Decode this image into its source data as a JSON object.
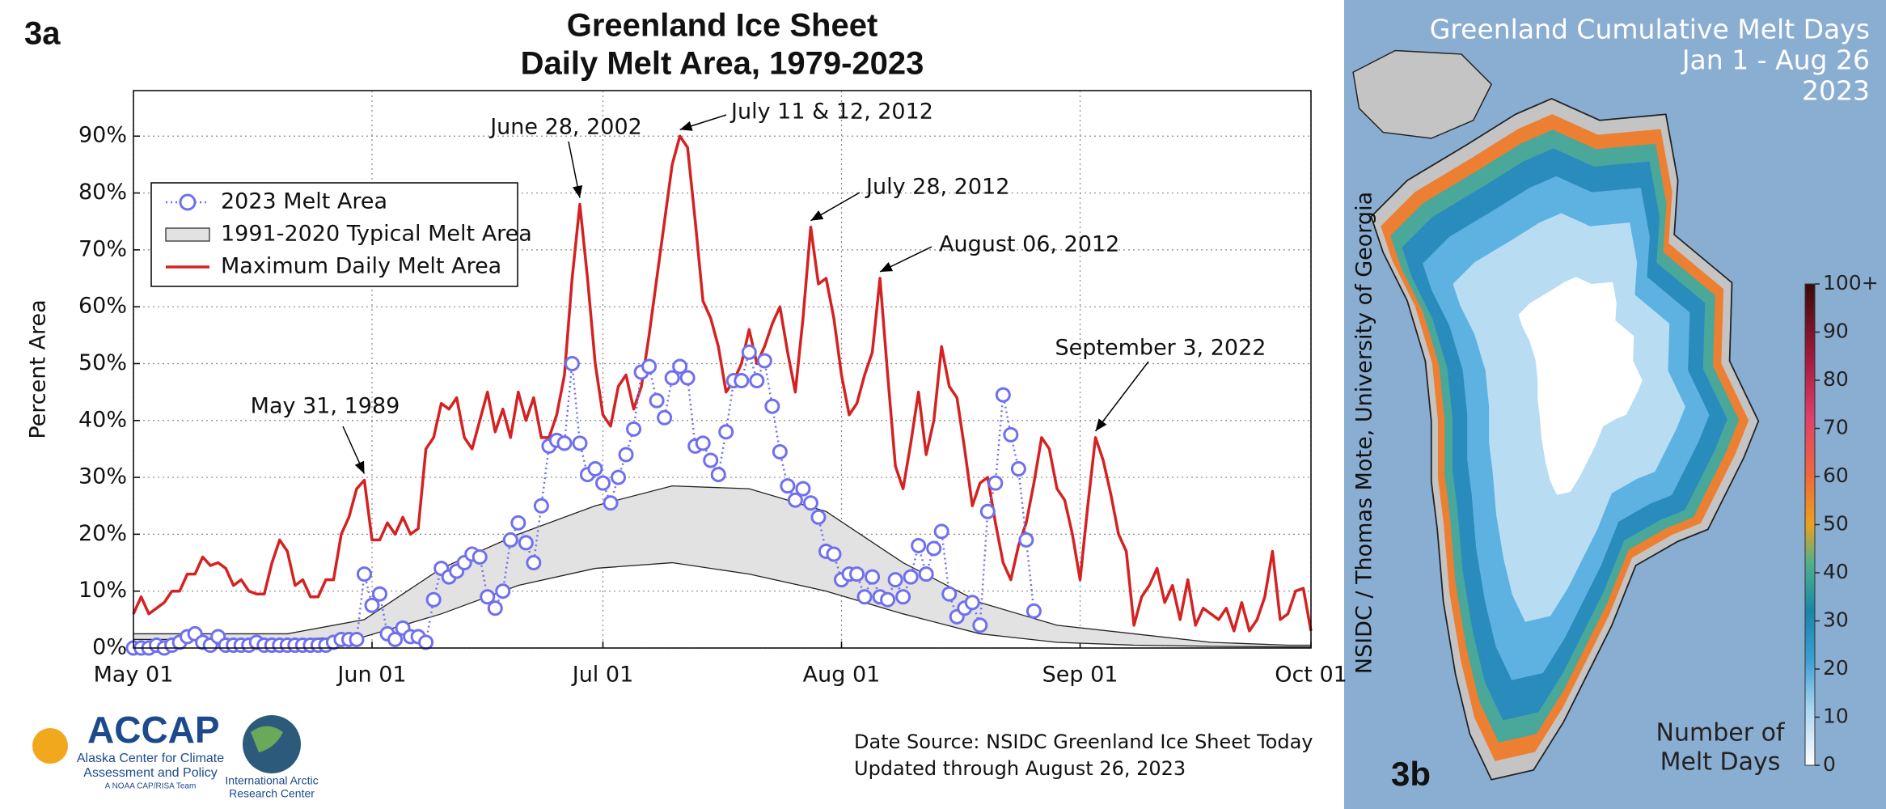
{
  "panel_label": "3a",
  "chart_data": {
    "type": "line",
    "title": [
      "Greenland Ice Sheet",
      "Daily Melt Area, 1979-2023"
    ],
    "ylabel": "Percent Area",
    "xlim": [
      0,
      153
    ],
    "xticks": [
      {
        "value": 0,
        "label": "May 01"
      },
      {
        "value": 31,
        "label": "Jun 01"
      },
      {
        "value": 61,
        "label": "Jul 01"
      },
      {
        "value": 92,
        "label": "Aug 01"
      },
      {
        "value": 123,
        "label": "Sep 01"
      },
      {
        "value": 153,
        "label": "Oct 01"
      }
    ],
    "ylim": [
      0,
      98
    ],
    "yticks": [
      {
        "value": 0,
        "label": "0%"
      },
      {
        "value": 10,
        "label": "10%"
      },
      {
        "value": 20,
        "label": "20%"
      },
      {
        "value": 30,
        "label": "30%"
      },
      {
        "value": 40,
        "label": "40%"
      },
      {
        "value": 50,
        "label": "50%"
      },
      {
        "value": 60,
        "label": "60%"
      },
      {
        "value": 70,
        "label": "70%"
      },
      {
        "value": 80,
        "label": "80%"
      },
      {
        "value": 90,
        "label": "90%"
      }
    ],
    "grid": true,
    "legend": "upper left",
    "x": [
      0,
      1,
      2,
      3,
      4,
      5,
      6,
      7,
      8,
      9,
      10,
      11,
      12,
      13,
      14,
      15,
      16,
      17,
      18,
      19,
      20,
      21,
      22,
      23,
      24,
      25,
      26,
      27,
      28,
      29,
      30,
      31,
      32,
      33,
      34,
      35,
      36,
      37,
      38,
      39,
      40,
      41,
      42,
      43,
      44,
      45,
      46,
      47,
      48,
      49,
      50,
      51,
      52,
      53,
      54,
      55,
      56,
      57,
      58,
      59,
      60,
      61,
      62,
      63,
      64,
      65,
      66,
      67,
      68,
      69,
      70,
      71,
      72,
      73,
      74,
      75,
      76,
      77,
      78,
      79,
      80,
      81,
      82,
      83,
      84,
      85,
      86,
      87,
      88,
      89,
      90,
      91,
      92,
      93,
      94,
      95,
      96,
      97,
      98,
      99,
      100,
      101,
      102,
      103,
      104,
      105,
      106,
      107,
      108,
      109,
      110,
      111,
      112,
      113,
      114,
      115,
      116,
      117,
      118,
      119,
      120,
      121,
      122,
      123,
      124,
      125,
      126,
      127,
      128,
      129,
      130,
      131,
      132,
      133,
      134,
      135,
      136,
      137,
      138,
      139,
      140,
      141,
      142,
      143,
      144,
      145,
      146,
      147,
      148,
      149,
      150,
      151,
      152,
      153
    ],
    "series": [
      {
        "name": "2023 Melt Area",
        "color": "#6f6ff0",
        "values": [
          0,
          0,
          0,
          0.5,
          0,
          0.5,
          1,
          2,
          2.5,
          1,
          0.5,
          2,
          0.5,
          0.5,
          0.5,
          0.5,
          1,
          0.5,
          0.5,
          0.5,
          0.5,
          0.5,
          0.5,
          0.5,
          0.5,
          0.5,
          1,
          1.5,
          1.5,
          1.5,
          13,
          7.5,
          9.5,
          2.5,
          1.5,
          3.5,
          2,
          2,
          1,
          8.5,
          14,
          12.5,
          13.5,
          15,
          16.5,
          16,
          9,
          7,
          10,
          19,
          22,
          18.5,
          15,
          25,
          35.5,
          36.5,
          36,
          50,
          36,
          30.5,
          31.5,
          29,
          25.5,
          30,
          34,
          38.5,
          48.5,
          49.5,
          43.5,
          40.5,
          47.5,
          49.5,
          47.5,
          35.5,
          36,
          33,
          30.5,
          38,
          47,
          47,
          52,
          47,
          50.5,
          42.5,
          34.5,
          28.5,
          26,
          28,
          25.5,
          23,
          17,
          16.5,
          12,
          13,
          13,
          9,
          12.5,
          9,
          8.5,
          12,
          9,
          12.5,
          18,
          13,
          17.5,
          20.5,
          9.5,
          5.5,
          7,
          8,
          4,
          24,
          29,
          44.5,
          37.5,
          31.5,
          19,
          6.5,
          null,
          null,
          null,
          null,
          null,
          null,
          null,
          null,
          null,
          null,
          null,
          null,
          null,
          null,
          null,
          null,
          null,
          null,
          null,
          null,
          null,
          null,
          null,
          null,
          null,
          null,
          null,
          null,
          null,
          null,
          null,
          null,
          null,
          null,
          null,
          null
        ]
      },
      {
        "name": "1991-2020 Typical Melt Area",
        "color": "#e2e2e2",
        "edge_color": "#222222",
        "x": [
          0,
          10,
          20,
          30,
          40,
          50,
          60,
          70,
          80,
          90,
          100,
          110,
          120,
          130,
          140,
          150,
          153
        ],
        "upper": [
          2.5,
          2.5,
          2.5,
          5,
          14,
          20,
          25,
          28.5,
          28,
          24,
          15,
          8,
          4,
          2.5,
          1,
          0.5,
          0.5
        ],
        "lower": [
          1.5,
          1.5,
          1.5,
          2,
          6,
          11,
          14,
          15,
          13,
          10,
          6,
          2.5,
          1,
          0.5,
          0.3,
          0.2,
          0.2
        ]
      },
      {
        "name": "Maximum Daily Melt Area",
        "color": "#d42222",
        "values": [
          6,
          9,
          6,
          7,
          8,
          10,
          10,
          13,
          13,
          16,
          14.5,
          15,
          14,
          11,
          12,
          10,
          9.5,
          9.5,
          15,
          19,
          17,
          11,
          12,
          9,
          9,
          12,
          12,
          20,
          23,
          28,
          29.5,
          19,
          19,
          22,
          20,
          23,
          20,
          21,
          35,
          37,
          43,
          42,
          44,
          37,
          35,
          40,
          45,
          38,
          42,
          37,
          45,
          40,
          44,
          37,
          37,
          41,
          48,
          65,
          78,
          65,
          50,
          41,
          39,
          46,
          48,
          42,
          46,
          55,
          65,
          75,
          85,
          90,
          88,
          75,
          61,
          58,
          53,
          45,
          47,
          50,
          56,
          50,
          53,
          57,
          60,
          52,
          45,
          58,
          74,
          64,
          65,
          58,
          48,
          41,
          43,
          48,
          52,
          65,
          48,
          32,
          28,
          36,
          45,
          34,
          40,
          53,
          46,
          44,
          35,
          25,
          29,
          30,
          22,
          15,
          12,
          18,
          22,
          29,
          37,
          35,
          28,
          26,
          20,
          12,
          25,
          37,
          33,
          27,
          20,
          17,
          4,
          9,
          11,
          14,
          8,
          11,
          5,
          12,
          4,
          7,
          6,
          5,
          7,
          3,
          8,
          3,
          5,
          9,
          17,
          5,
          6,
          10,
          10.5,
          3
        ]
      }
    ],
    "annotations": [
      {
        "text": "May 31, 1989",
        "x": 30,
        "y": 29.5
      },
      {
        "text": "June 28, 2002",
        "x": 58,
        "y": 78
      },
      {
        "text": "July 11 & 12, 2012",
        "x": 71,
        "y": 90
      },
      {
        "text": "July 28, 2012",
        "x": 88,
        "y": 74
      },
      {
        "text": "August 06, 2012",
        "x": 97,
        "y": 65
      },
      {
        "text": "September 3, 2022",
        "x": 125,
        "y": 37
      }
    ]
  },
  "footer": {
    "logo_name": "ACCAP",
    "logo_lines": [
      "Alaska Center for Climate",
      "Assessment and Policy"
    ],
    "logo_team": "A NOAA CAP/RISA Team",
    "partner_lines": [
      "International Arctic",
      "Research Center"
    ],
    "source_lines": [
      "Date Source: NSIDC Greenland Ice Sheet Today",
      "Updated through August 26, 2023"
    ]
  },
  "map": {
    "panel_label": "3b",
    "title": [
      "Greenland Cumulative Melt Days",
      "Jan 1 - Aug 26",
      "2023"
    ],
    "credit": "NSIDC / Thomas Mote, University of Georgia",
    "colorbar": {
      "label": [
        "Number of",
        "Melt Days"
      ],
      "range": [
        0,
        100
      ],
      "ticks": [
        0,
        10,
        20,
        30,
        40,
        50,
        60,
        70,
        80,
        90,
        {
          "value": 100,
          "label": "100+"
        }
      ]
    }
  }
}
